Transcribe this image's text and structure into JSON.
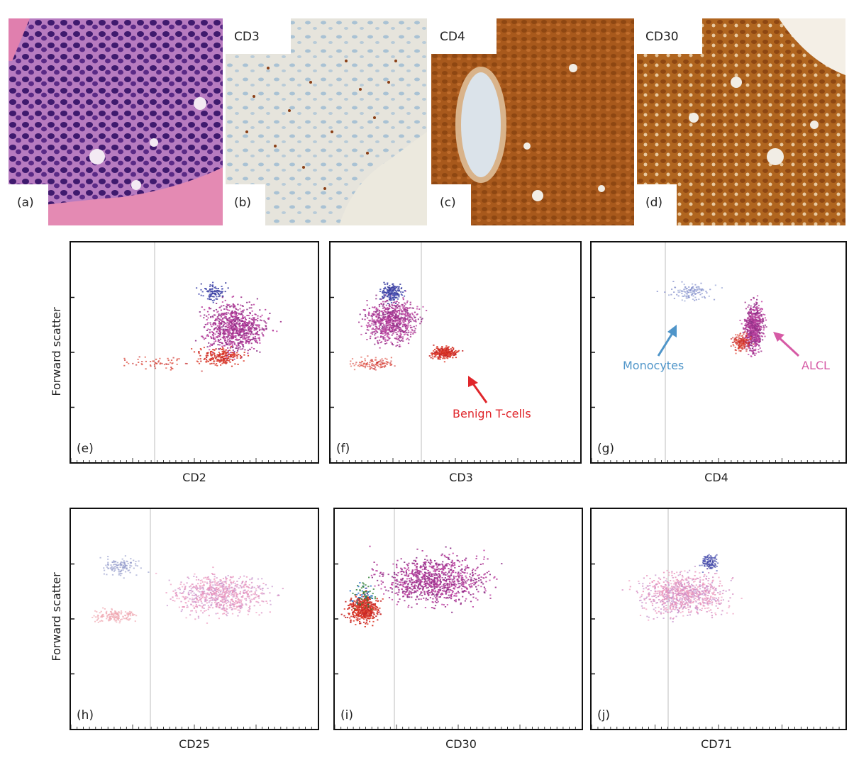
{
  "histology_panels": [
    {
      "letter": "(a)",
      "marker": ""
    },
    {
      "letter": "(b)",
      "marker": "CD3"
    },
    {
      "letter": "(c)",
      "marker": "CD4"
    },
    {
      "letter": "(d)",
      "marker": "CD30"
    }
  ],
  "flow_plots": [
    {
      "letter": "(e)",
      "xlabel": "CD2"
    },
    {
      "letter": "(f)",
      "xlabel": "CD3"
    },
    {
      "letter": "(g)",
      "xlabel": "CD4"
    },
    {
      "letter": "(h)",
      "xlabel": "CD25"
    },
    {
      "letter": "(i)",
      "xlabel": "CD30"
    },
    {
      "letter": "(j)",
      "xlabel": "CD71"
    }
  ],
  "ylabel": "Forward scatter",
  "annotations": {
    "benign": "Benign T-cells",
    "monocytes": "Monocytes",
    "alcl": "ALCL"
  },
  "colors": {
    "he_stain": "#7a3f9a",
    "dab_stain": "#a0561c",
    "benign_arrow": "#e0262b",
    "monocytes_arrow": "#4f95c9",
    "alcl_arrow": "#d65aa5"
  }
}
